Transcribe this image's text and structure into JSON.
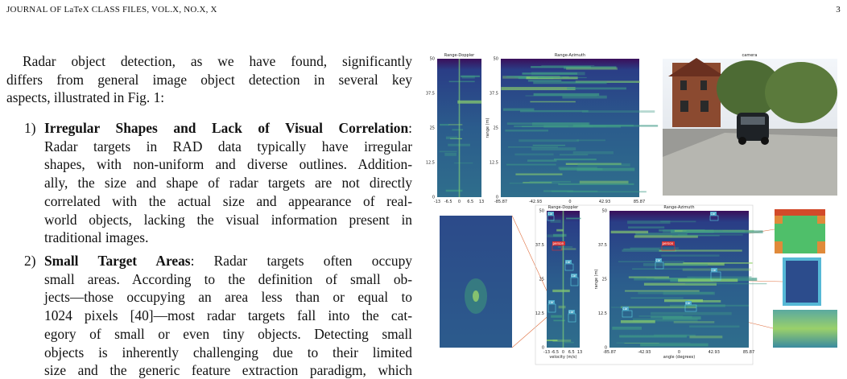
{
  "header": {
    "left": "JOURNAL OF LaTeX CLASS FILES, VOL.X, NO.X, X",
    "page": "3"
  },
  "paragraph": {
    "lines": [
      "Radar object detection, as we have found, significantly",
      "differs from general image object detection in several key",
      "aspects, illustrated in Fig. 1:"
    ]
  },
  "list": [
    {
      "number": "1)",
      "title": "Irregular Shapes and Lack of Visual Correlation",
      "title_end": ":",
      "lines": [
        "Radar targets in RAD data typically have irregular",
        "shapes, with non-uniform and diverse outlines. Addition-",
        "ally, the size and shape of radar targets are not directly",
        "correlated with the actual size and appearance of real-",
        "world objects, lacking the visual information present in",
        "traditional images."
      ]
    },
    {
      "number": "2)",
      "title": "Small Target Areas",
      "title_end": ": Radar targets often occupy",
      "lines": [
        "small areas. According to the definition of small ob-",
        "jects—those occupying an area less than or equal to",
        "1024 pixels [40]—most radar targets fall into the cat-",
        "egory of small or even tiny objects. Detecting small",
        "objects is inherently challenging due to their limited",
        "size and the generic feature extraction paradigm, which"
      ]
    }
  ],
  "figure": {
    "top_range_doppler": {
      "title": "Range-Doppler",
      "yticks": [
        "50",
        "37.5",
        "25",
        "12.5",
        "0"
      ],
      "xticks": [
        "-13",
        "-6.5",
        "0",
        "6.5",
        "13"
      ]
    },
    "top_range_azimuth": {
      "title": "Range-Azimuth",
      "ylabel": "range (m)",
      "yticks": [
        "50",
        "37.5",
        "25",
        "12.5",
        "0"
      ],
      "xticks": [
        "-85.87",
        "-42.93",
        "0",
        "42.93",
        "85.87"
      ]
    },
    "camera": {
      "title": "camera"
    },
    "bottom_range_doppler": {
      "title": "Range-Doppler",
      "xlabel": "velocity (m/s)",
      "yticks": [
        "50",
        "37.5",
        "25",
        "12.5",
        "0"
      ],
      "xticks": [
        "-13",
        "-6.5",
        "0",
        "6.5",
        "13"
      ],
      "labels": [
        "car",
        "person",
        "car",
        "car",
        "car",
        "car"
      ]
    },
    "bottom_range_azimuth": {
      "title": "Range-Azimuth",
      "ylabel": "range (m)",
      "xlabel": "angle (degrees)",
      "yticks": [
        "50",
        "37.5",
        "25",
        "12.5",
        "0"
      ],
      "xticks": [
        "-85.87",
        "-42.93",
        "0",
        "42.93",
        "85.87"
      ],
      "labels": [
        "car",
        "person",
        "car",
        "car",
        "car",
        "car"
      ]
    }
  }
}
